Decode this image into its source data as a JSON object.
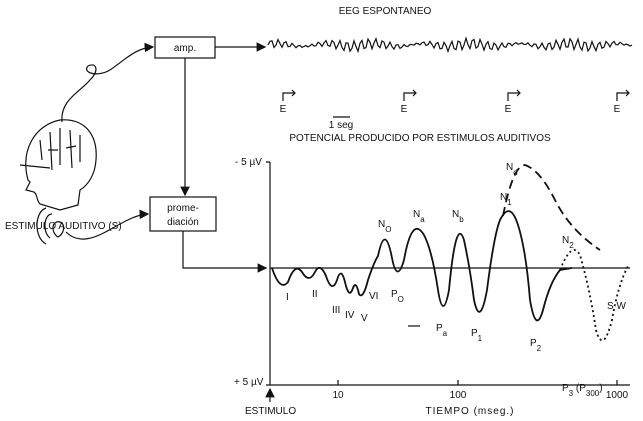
{
  "eeg_title": "EEG ESPONTANEO",
  "amp_box": "amp.",
  "stimulus_markers": [
    "E",
    "E",
    "E",
    "E"
  ],
  "time_scale": "1 seg",
  "evoked_title": "POTENCIAL PRODUCIDO POR ESTIMULOS AUDITIVOS",
  "averaging_box": [
    "prome-",
    "diación"
  ],
  "stimulus_label": "ESTIMULO AUDITIVO (S)",
  "y_top": "- 5 µV",
  "y_bottom": "+ 5 µV",
  "x_ticks": [
    "10",
    "100",
    "1000"
  ],
  "x_origin": "ESTIMULO",
  "x_title": "TIEMPO (mseg.)",
  "components": [
    {
      "segments": [
        {
          "t": "I"
        }
      ]
    },
    {
      "segments": [
        {
          "t": "II"
        }
      ]
    },
    {
      "segments": [
        {
          "t": "III"
        }
      ]
    },
    {
      "segments": [
        {
          "t": "IV"
        }
      ]
    },
    {
      "segments": [
        {
          "t": "V"
        }
      ]
    },
    {
      "segments": [
        {
          "t": "VI"
        }
      ]
    },
    {
      "segments": [
        {
          "t": "N"
        },
        {
          "s": "O"
        }
      ]
    },
    {
      "segments": [
        {
          "t": "P"
        },
        {
          "s": "O"
        }
      ]
    },
    {
      "segments": [
        {
          "t": "N"
        },
        {
          "s": "a"
        }
      ]
    },
    {
      "segments": [
        {
          "t": "P"
        },
        {
          "s": "a"
        }
      ]
    },
    {
      "segments": [
        {
          "t": "N"
        },
        {
          "s": "b"
        }
      ]
    },
    {
      "segments": [
        {
          "t": "P"
        },
        {
          "s": "1"
        }
      ]
    },
    {
      "segments": [
        {
          "t": "N"
        },
        {
          "s": "1"
        }
      ]
    },
    {
      "segments": [
        {
          "t": "N"
        },
        {
          "s": "d"
        }
      ]
    },
    {
      "segments": [
        {
          "t": "N"
        },
        {
          "s": "2"
        }
      ]
    },
    {
      "segments": [
        {
          "t": "P"
        },
        {
          "s": "2"
        }
      ]
    },
    {
      "segments": [
        {
          "t": "P"
        },
        {
          "s": "3"
        },
        {
          "t": " (P"
        },
        {
          "s": "300"
        },
        {
          "t": ")"
        }
      ]
    },
    {
      "segments": [
        {
          "t": "S W"
        }
      ]
    }
  ]
}
